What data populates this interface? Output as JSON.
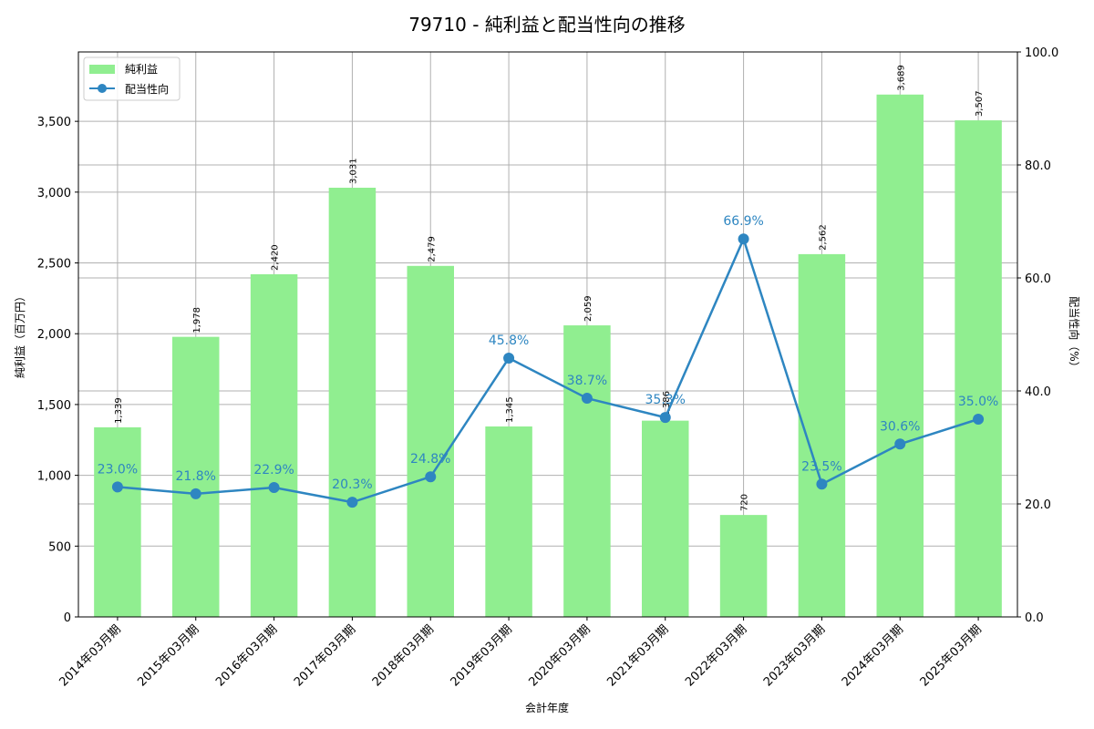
{
  "chart_data": {
    "type": "bar+line",
    "title": "79710 - 純利益と配当性向の推移",
    "xlabel": "会計年度",
    "ylabel_left": "純利益（百万円）",
    "ylabel_right": "配当性向（%）",
    "categories": [
      "2014年03月期",
      "2015年03月期",
      "2016年03月期",
      "2017年03月期",
      "2018年03月期",
      "2019年03月期",
      "2020年03月期",
      "2021年03月期",
      "2022年03月期",
      "2023年03月期",
      "2024年03月期",
      "2025年03月期"
    ],
    "series": [
      {
        "name": "純利益",
        "type": "bar",
        "axis": "left",
        "color": "#90ee90",
        "values": [
          1339,
          1978,
          2420,
          3031,
          2479,
          1345,
          2059,
          1386,
          720,
          2562,
          3689,
          3507
        ],
        "labels": [
          "1,339",
          "1,978",
          "2,420",
          "3,031",
          "2,479",
          "1,345",
          "2,059",
          "1,386",
          "720",
          "2,562",
          "3,689",
          "3,507"
        ]
      },
      {
        "name": "配当性向",
        "type": "line",
        "axis": "right",
        "color": "#2e86c1",
        "values": [
          23.0,
          21.8,
          22.9,
          20.3,
          24.8,
          45.8,
          38.7,
          35.3,
          66.9,
          23.5,
          30.6,
          35.0
        ],
        "labels": [
          "23.0%",
          "21.8%",
          "22.9%",
          "20.3%",
          "24.8%",
          "45.8%",
          "38.7%",
          "35.3%",
          "66.9%",
          "23.5%",
          "30.6%",
          "35.0%"
        ]
      }
    ],
    "ylim_left": [
      0,
      3990
    ],
    "ylim_right": [
      0,
      100
    ],
    "yticks_left": [
      0,
      500,
      1000,
      1500,
      2000,
      2500,
      3000,
      3500
    ],
    "yticks_left_labels": [
      "0",
      "500",
      "1,000",
      "1,500",
      "2,000",
      "2,500",
      "3,000",
      "3,500"
    ],
    "yticks_right": [
      0,
      20,
      40,
      60,
      80,
      100
    ],
    "yticks_right_labels": [
      "0.0",
      "20.0",
      "40.0",
      "60.0",
      "80.0",
      "100.0"
    ],
    "grid": true,
    "legend_position": "upper left",
    "legend": [
      "純利益",
      "配当性向"
    ]
  }
}
